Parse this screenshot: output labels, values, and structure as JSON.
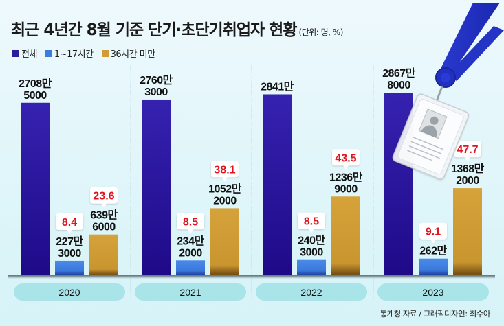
{
  "title": "최근 4년간 8월 기준 단기·초단기취업자 현황",
  "unit": "(단위: 명, %)",
  "source": "통계청 자료 / 그래픽디자인: 최수아",
  "colors": {
    "total": "#3322aa",
    "short": "#3a7de0",
    "under36": "#cf9c35",
    "pct": "#e0141e",
    "label_bg": "#a8e4e8"
  },
  "chart_data": {
    "type": "bar",
    "title": "최근 4년간 8월 기준 단기·초단기취업자 현황",
    "unit_note": "(단위: 명, %)",
    "categories": [
      "2020",
      "2021",
      "2022",
      "2023"
    ],
    "series": [
      {
        "name": "전체",
        "values": [
          27085000,
          27603000,
          28410000,
          28678000
        ],
        "labels": [
          [
            "2708만",
            "5000"
          ],
          [
            "2760만",
            "3000"
          ],
          [
            "2841만"
          ],
          [
            "2867만",
            "8000"
          ]
        ]
      },
      {
        "name": "1~17시간",
        "values": [
          2273000,
          2342000,
          2403000,
          2620000
        ],
        "labels": [
          [
            "227만",
            "3000"
          ],
          [
            "234만",
            "2000"
          ],
          [
            "240만",
            "3000"
          ],
          [
            "262만"
          ]
        ],
        "percent": [
          "8.4",
          "8.5",
          "8.5",
          "9.1"
        ]
      },
      {
        "name": "36시간 미만",
        "values": [
          6396000,
          10522000,
          12369000,
          13682000
        ],
        "labels": [
          [
            "639만",
            "6000"
          ],
          [
            "1052만",
            "2000"
          ],
          [
            "1236만",
            "9000"
          ],
          [
            "1368만",
            "2000"
          ]
        ],
        "percent": [
          "23.6",
          "38.1",
          "43.5",
          "47.7"
        ]
      }
    ],
    "ylim": [
      0,
      28678000
    ],
    "grid": false,
    "legend": "top-left"
  }
}
